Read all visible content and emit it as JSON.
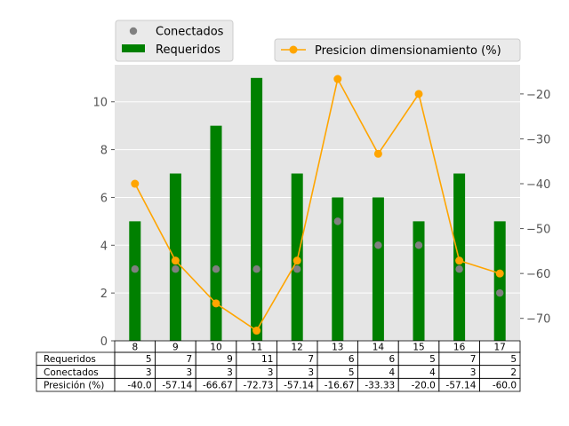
{
  "chart_data": {
    "type": "bar",
    "categories": [
      "8",
      "9",
      "10",
      "11",
      "12",
      "13",
      "14",
      "15",
      "16",
      "17"
    ],
    "series": [
      {
        "name": "Requeridos",
        "kind": "bar",
        "axis": "left",
        "color": "#008000",
        "values": [
          5,
          7,
          9,
          11,
          7,
          6,
          6,
          5,
          7,
          5
        ]
      },
      {
        "name": "Conectados",
        "kind": "scatter",
        "axis": "left",
        "color": "#808080",
        "values": [
          3,
          3,
          3,
          3,
          3,
          5,
          4,
          4,
          3,
          2
        ]
      },
      {
        "name": "Presicion dimensionamiento (%)",
        "kind": "line",
        "axis": "right",
        "color": "#FFA500",
        "values": [
          -40.0,
          -57.14,
          -66.67,
          -72.73,
          -57.14,
          -16.67,
          -33.33,
          -20.0,
          -57.14,
          -60.0
        ]
      }
    ],
    "y_left": {
      "ticks": [
        0,
        2,
        4,
        6,
        8,
        10
      ],
      "ylim": [
        0,
        11.55
      ]
    },
    "y_right": {
      "ticks": [
        -70,
        -60,
        -50,
        -40,
        -30,
        -20
      ],
      "ylim": [
        -75.0,
        -13.5
      ]
    },
    "grid": true,
    "background": "#E5E5E5",
    "legend_left": {
      "placement": "top-left, above plot",
      "items": [
        "Conectados",
        "Requeridos"
      ]
    },
    "legend_right": {
      "placement": "top-right",
      "items": [
        "Presicion dimensionamiento (%)"
      ]
    },
    "table": {
      "row_labels": [
        "Requeridos",
        "Conectados",
        "Presición (%)"
      ],
      "rows": [
        [
          "5",
          "7",
          "9",
          "11",
          "7",
          "6",
          "6",
          "5",
          "7",
          "5"
        ],
        [
          "3",
          "3",
          "3",
          "3",
          "3",
          "5",
          "4",
          "4",
          "3",
          "2"
        ],
        [
          "-40.0",
          "-57.14",
          "-66.67",
          "-72.73",
          "-57.14",
          "-16.67",
          "-33.33",
          "-20.0",
          "-57.14",
          "-60.0"
        ]
      ]
    }
  }
}
